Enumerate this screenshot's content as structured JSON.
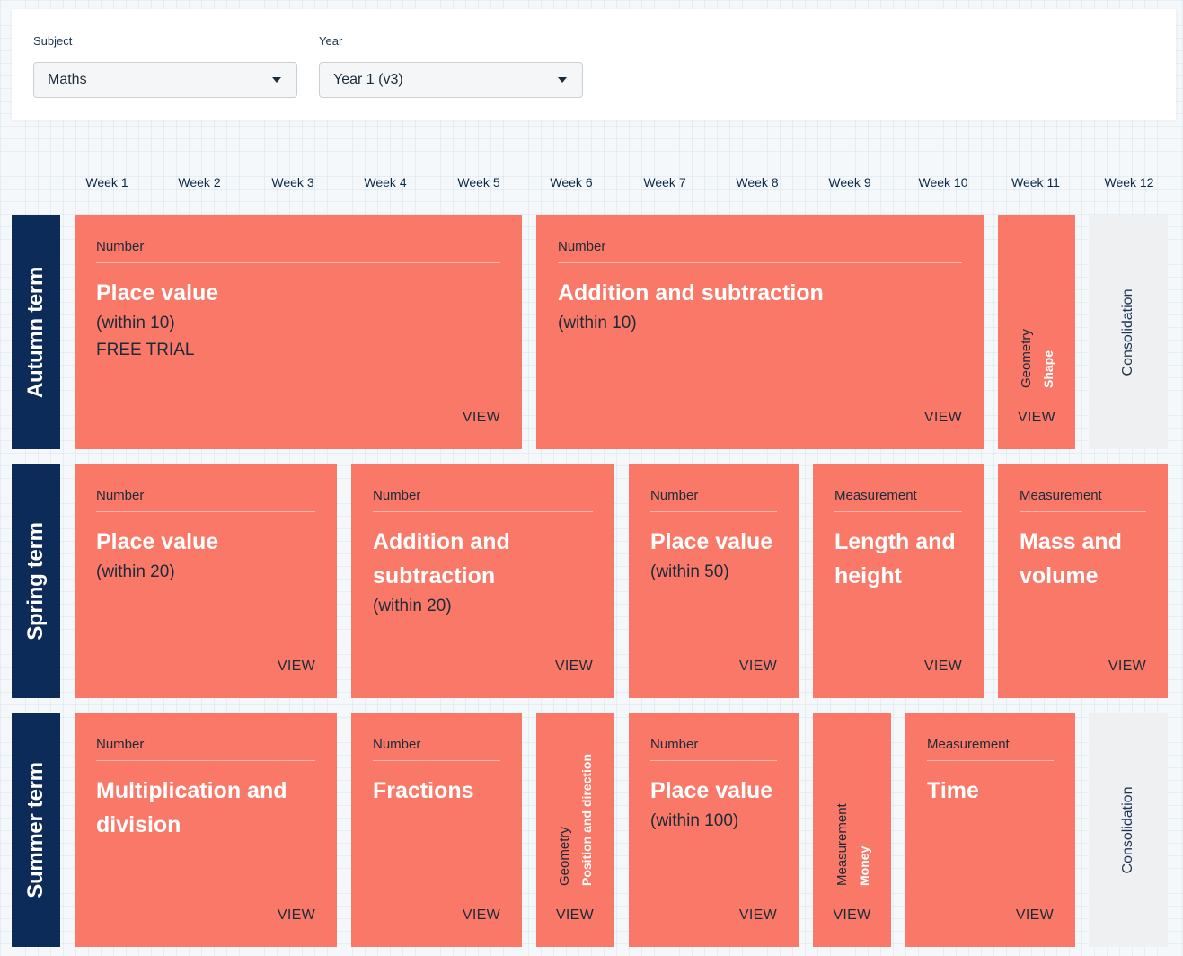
{
  "filters": {
    "subject": {
      "label": "Subject",
      "value": "Maths"
    },
    "year": {
      "label": "Year",
      "value": "Year 1 (v3)"
    }
  },
  "weeks": [
    "Week 1",
    "Week 2",
    "Week 3",
    "Week 4",
    "Week 5",
    "Week 6",
    "Week 7",
    "Week 8",
    "Week 9",
    "Week 10",
    "Week 11",
    "Week 12"
  ],
  "terms": {
    "autumn": "Autumn term",
    "spring": "Spring term",
    "summer": "Summer term"
  },
  "view_label": "VIEW",
  "consolidation_label": "Consolidation",
  "colors": {
    "block": "#fa7868",
    "term": "#0d2b59",
    "consolidation": "#eef0f2"
  },
  "autumn_blocks": [
    {
      "strand": "Number",
      "title": "Place value",
      "sub1": "(within 10)",
      "sub2": "FREE TRIAL"
    },
    {
      "strand": "Number",
      "title": "Addition and subtraction",
      "sub1": "(within 10)"
    },
    {
      "strand": "Geometry",
      "title": "Shape"
    }
  ],
  "spring_blocks": [
    {
      "strand": "Number",
      "title": "Place value",
      "sub1": "(within 20)"
    },
    {
      "strand": "Number",
      "title": "Addition and subtraction",
      "sub1": "(within 20)"
    },
    {
      "strand": "Number",
      "title": "Place value",
      "sub1": "(within 50)"
    },
    {
      "strand": "Measurement",
      "title": "Length and height"
    },
    {
      "strand": "Measurement",
      "title": "Mass and volume"
    }
  ],
  "summer_blocks": [
    {
      "strand": "Number",
      "title": "Multiplication and division"
    },
    {
      "strand": "Number",
      "title": "Fractions"
    },
    {
      "strand": "Geometry",
      "title": "Position and direction"
    },
    {
      "strand": "Number",
      "title": "Place value",
      "sub1": "(within 100)"
    },
    {
      "strand": "Measurement",
      "title": "Money"
    },
    {
      "strand": "Measurement",
      "title": "Time"
    }
  ]
}
